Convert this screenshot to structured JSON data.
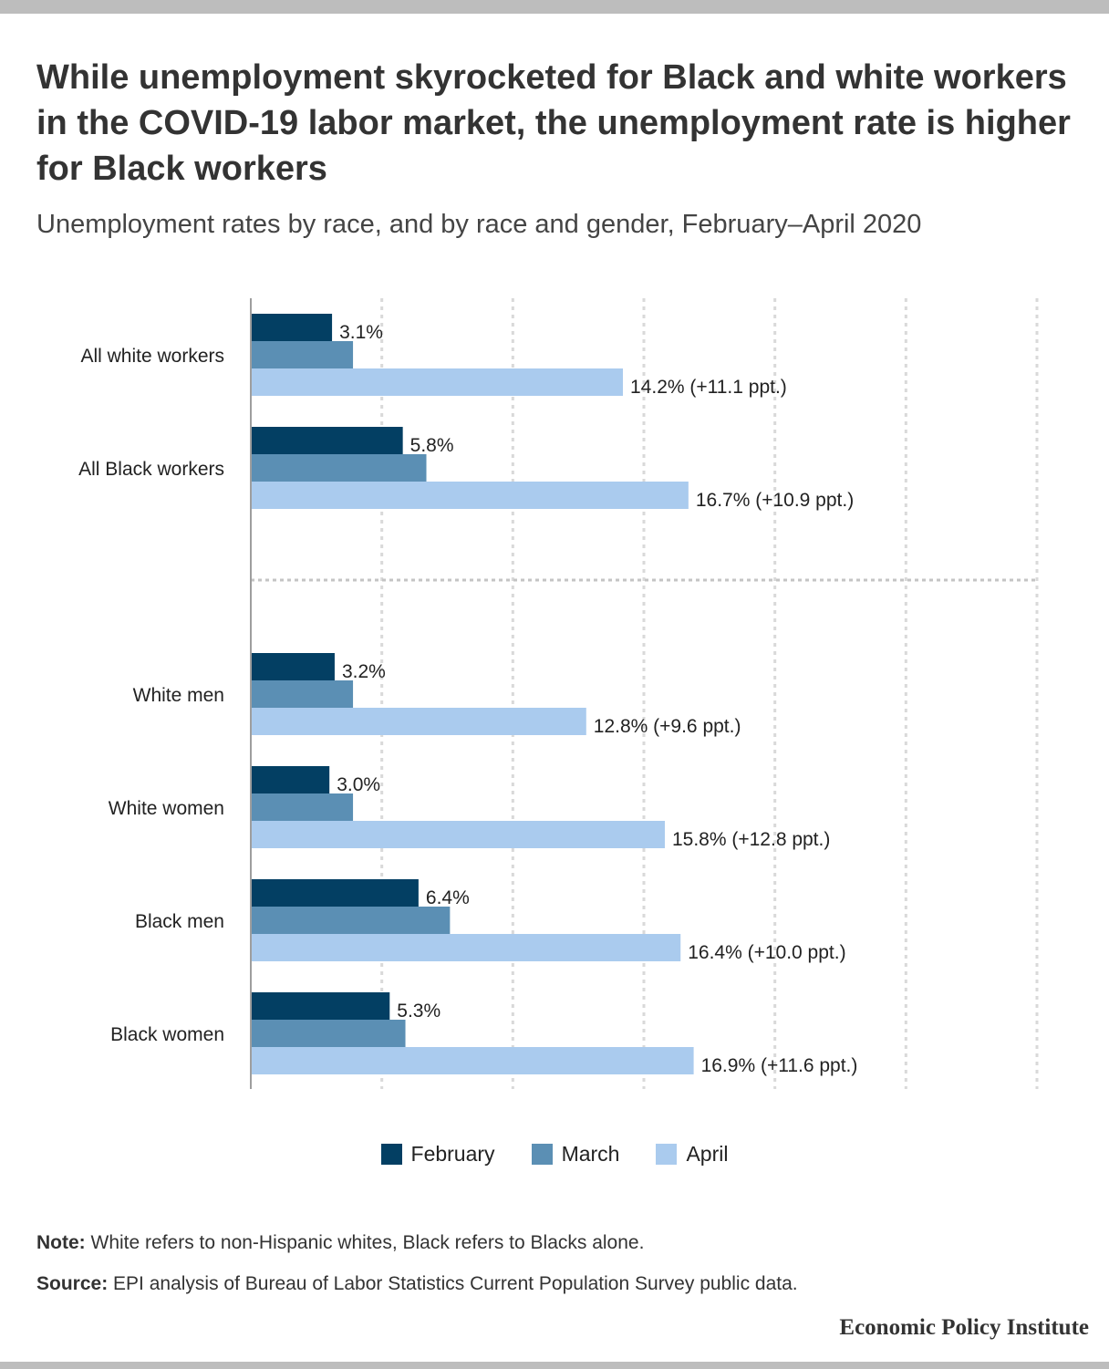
{
  "title": "While unemployment skyrocketed for Black and white workers in the COVID-19 labor market, the unemployment rate is higher for Black workers",
  "subtitle": "Unemployment rates by race, and by race and gender, February–April 2020",
  "legend": [
    {
      "label": "February",
      "color": "#033f63"
    },
    {
      "label": "March",
      "color": "#5b8fb4"
    },
    {
      "label": "April",
      "color": "#aacbee"
    }
  ],
  "note": {
    "label": "Note:",
    "text": "White refers to non-Hispanic whites, Black refers to Blacks alone."
  },
  "source": {
    "label": "Source:",
    "text": "EPI analysis of Bureau of Labor Statistics Current Population Survey public data."
  },
  "brand": "Economic Policy Institute",
  "chart_data": {
    "type": "bar",
    "orientation": "horizontal",
    "xlim": [
      0,
      30
    ],
    "grid": true,
    "categories": [
      "All white workers",
      "All Black workers",
      "White men",
      "White women",
      "Black men",
      "Black women"
    ],
    "series": [
      {
        "name": "February",
        "color": "#033f63",
        "values": [
          3.1,
          5.8,
          3.2,
          3.0,
          6.4,
          5.3
        ]
      },
      {
        "name": "March",
        "color": "#5b8fb4",
        "values": [
          3.9,
          6.7,
          3.9,
          3.9,
          7.6,
          5.9
        ]
      },
      {
        "name": "April",
        "color": "#aacbee",
        "values": [
          14.2,
          16.7,
          12.8,
          15.8,
          16.4,
          16.9
        ]
      }
    ],
    "data_labels": {
      "February": [
        "3.1%",
        "5.8%",
        "3.2%",
        "3.0%",
        "6.4%",
        "5.3%"
      ],
      "April": [
        "14.2% (+11.1 ppt.)",
        "16.7% (+10.9 ppt.)",
        "12.8% (+9.6 ppt.)",
        "15.8% (+12.8 ppt.)",
        "16.4% (+10.0 ppt.)",
        "16.9% (+11.6 ppt.)"
      ]
    },
    "group_divider_after": "All Black workers"
  }
}
